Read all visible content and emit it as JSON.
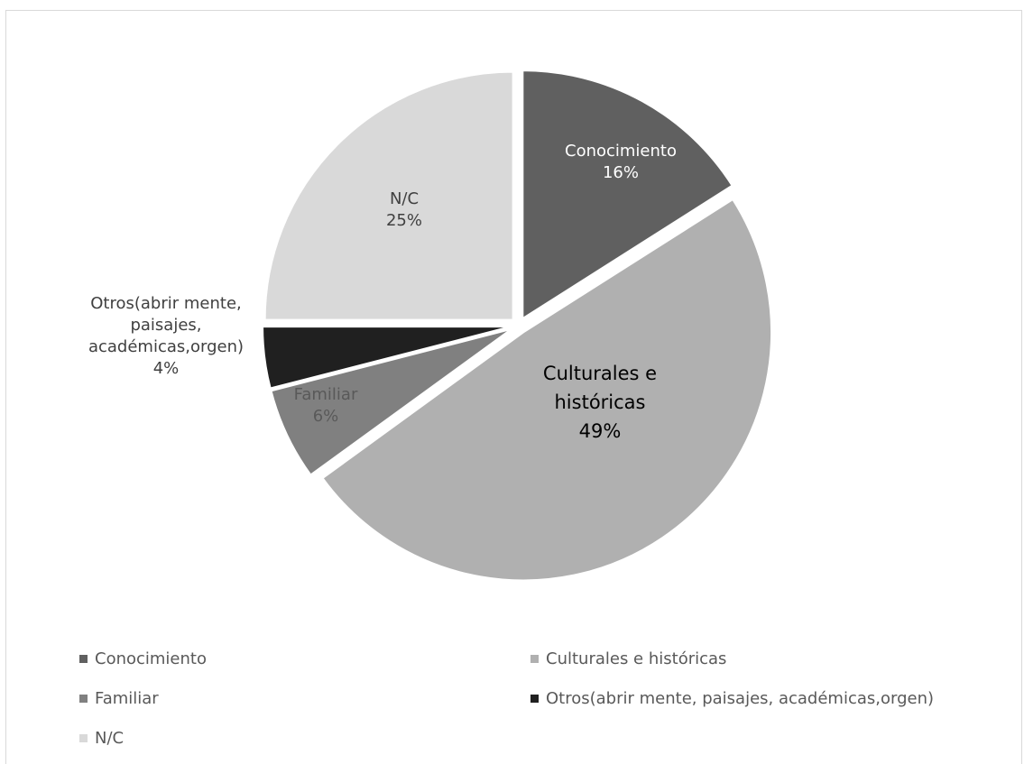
{
  "chart_data": {
    "type": "pie",
    "title": "",
    "categories": [
      "Conocimiento",
      "Culturales e históricas",
      "Familiar",
      "Otros(abrir mente, paisajes, académicas,orgen)",
      "N/C"
    ],
    "values": [
      16,
      49,
      6,
      4,
      25
    ],
    "unit": "%",
    "colors": [
      "#606060",
      "#b0b0b0",
      "#808080",
      "#202020",
      "#d9d9d9"
    ],
    "exploded": true,
    "legend_position": "bottom",
    "slice_labels": [
      {
        "lines": [
          "Conocimiento",
          "16%"
        ]
      },
      {
        "lines": [
          "Culturales e",
          "históricas",
          "49%"
        ]
      },
      {
        "lines": [
          "Familiar",
          "6%"
        ]
      },
      {
        "lines": [
          "Otros(abrir mente,",
          "paisajes,",
          "académicas,orgen)",
          "4%"
        ]
      },
      {
        "lines": [
          "N/C",
          "25%"
        ]
      }
    ]
  },
  "legend": {
    "items": [
      {
        "label": "Conocimiento",
        "color": "#606060"
      },
      {
        "label": "Culturales e históricas",
        "color": "#b0b0b0"
      },
      {
        "label": "Familiar",
        "color": "#808080"
      },
      {
        "label": "Otros(abrir mente, paisajes, académicas,orgen)",
        "color": "#202020"
      },
      {
        "label": "N/C",
        "color": "#d9d9d9"
      }
    ]
  }
}
